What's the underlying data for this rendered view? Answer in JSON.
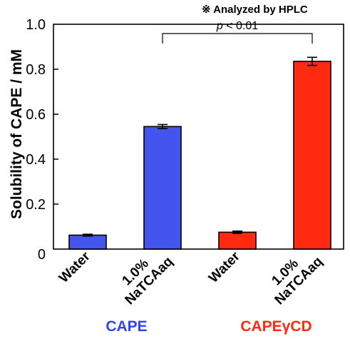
{
  "chart_data": {
    "type": "bar",
    "ylabel": "Solubility of CAPE / mM",
    "ylim": [
      0,
      1.0
    ],
    "yticks": [
      0,
      0.2,
      0.4,
      0.6,
      0.8,
      1.0
    ],
    "ytick_labels": [
      "0",
      "0.2",
      "0.4",
      "0.6",
      "0.8",
      "1.0"
    ],
    "grid": false,
    "categories": [
      "Water",
      "1.0%\nNaTCAaq",
      "Water",
      "1.0%\nNaTCAaq"
    ],
    "values": [
      0.062,
      0.545,
      0.075,
      0.835
    ],
    "errors": [
      0.004,
      0.009,
      0.005,
      0.018
    ],
    "bar_colors": [
      "#4455ee",
      "#4455ee",
      "#ff2a10",
      "#ff2a10"
    ],
    "groups": [
      {
        "label": "CAPE",
        "color": "#3344ee",
        "bars": [
          0,
          1
        ]
      },
      {
        "label": "CAPEγCD",
        "color": "#ff2a10",
        "bars": [
          2,
          3
        ]
      }
    ],
    "annotation": "※ Analyzed by HPLC",
    "significance": {
      "from": 1,
      "to": 3,
      "label_italic": "p",
      "label_rest": " < 0.01"
    }
  }
}
